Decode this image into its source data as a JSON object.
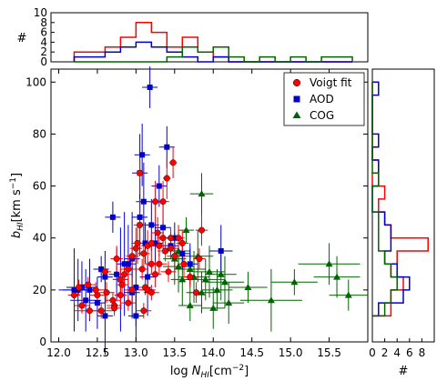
{
  "chart_data": [
    {
      "id": "main-scatter",
      "type": "scatter",
      "xlabel": "log N_HI[cm^-2]",
      "ylabel": "b_HI[km s^-1]",
      "xlim": [
        11.9,
        16.0
      ],
      "ylim": [
        0,
        105
      ],
      "xticks": [
        "12.0",
        "12.5",
        "13.0",
        "13.5",
        "14.0",
        "14.5",
        "15.0",
        "15.5"
      ],
      "yticks": [
        "0",
        "20",
        "40",
        "60",
        "80",
        "100"
      ],
      "legend": {
        "placement": "top-right",
        "entries": [
          "Voigt fit",
          "AOD",
          "COG"
        ]
      },
      "series": [
        {
          "name": "Voigt fit",
          "color": "#ff0000",
          "marker": "circle",
          "points": [
            [
              12.2,
              18,
              0.08,
              3
            ],
            [
              12.26,
              21,
              0.08,
              3
            ],
            [
              12.3,
              14,
              0.1,
              3
            ],
            [
              12.38,
              22,
              0.1,
              3
            ],
            [
              12.4,
              12,
              0.2,
              3
            ],
            [
              12.5,
              18,
              0.1,
              3
            ],
            [
              12.55,
              12,
              0.15,
              3
            ],
            [
              12.6,
              27,
              0.08,
              3
            ],
            [
              12.62,
              19,
              0.1,
              4
            ],
            [
              12.7,
              16,
              0.1,
              3
            ],
            [
              12.72,
              14,
              0.1,
              3
            ],
            [
              12.72,
              13,
              0.1,
              3
            ],
            [
              12.75,
              32,
              0.08,
              5
            ],
            [
              12.8,
              24,
              0.1,
              5
            ],
            [
              12.8,
              18,
              0.08,
              4
            ],
            [
              12.82,
              22,
              0.08,
              3
            ],
            [
              12.85,
              26,
              0.1,
              5
            ],
            [
              12.9,
              28,
              0.1,
              6
            ],
            [
              12.95,
              20,
              0.1,
              5
            ],
            [
              12.95,
              33,
              0.08,
              4
            ],
            [
              13.0,
              36,
              0.08,
              8
            ],
            [
              13.02,
              38,
              0.08,
              8
            ],
            [
              13.05,
              45,
              0.08,
              10
            ],
            [
              13.05,
              65,
              0.05,
              8
            ],
            [
              13.08,
              28,
              0.08,
              4
            ],
            [
              13.1,
              34,
              0.08,
              5
            ],
            [
              13.12,
              21,
              0.08,
              3
            ],
            [
              13.15,
              37,
              0.08,
              6
            ],
            [
              13.15,
              20,
              0.1,
              3
            ],
            [
              13.2,
              30,
              0.08,
              4
            ],
            [
              13.2,
              38,
              0.08,
              4
            ],
            [
              13.25,
              26,
              0.08,
              5
            ],
            [
              13.25,
              54,
              0.08,
              8
            ],
            [
              13.28,
              42,
              0.08,
              6
            ],
            [
              13.3,
              37,
              0.08,
              4
            ],
            [
              13.3,
              30,
              0.1,
              4
            ],
            [
              13.35,
              54,
              0.08,
              8
            ],
            [
              13.35,
              40,
              0.08,
              5
            ],
            [
              13.38,
              35,
              0.1,
              4
            ],
            [
              13.4,
              63,
              0.05,
              8
            ],
            [
              13.42,
              27,
              0.1,
              4
            ],
            [
              13.45,
              36,
              0.1,
              4
            ],
            [
              13.45,
              40,
              0.1,
              4
            ],
            [
              13.48,
              69,
              0.05,
              6
            ],
            [
              13.5,
              33,
              0.1,
              5
            ],
            [
              13.55,
              40,
              0.08,
              5
            ],
            [
              13.6,
              38,
              0.08,
              5
            ],
            [
              13.62,
              30,
              0.08,
              5
            ],
            [
              13.7,
              25,
              0.1,
              4
            ],
            [
              13.78,
              19,
              0.1,
              4
            ],
            [
              13.82,
              32,
              0.08,
              4
            ],
            [
              13.85,
              43,
              0.08,
              6
            ],
            [
              12.48,
              20,
              0.12,
              3
            ],
            [
              12.9,
              15,
              0.1,
              3
            ],
            [
              13.1,
              12,
              0.1,
              3
            ],
            [
              13.2,
              19,
              0.1,
              3
            ]
          ]
        },
        {
          "name": "AOD",
          "color": "#0000cc",
          "marker": "square",
          "points": [
            [
              12.2,
              20,
              0.2,
              16
            ],
            [
              12.25,
              20,
              0.2,
              12
            ],
            [
              12.3,
              21,
              0.2,
              10
            ],
            [
              12.35,
              16,
              0.2,
              12
            ],
            [
              12.4,
              20,
              0.15,
              12
            ],
            [
              12.5,
              15,
              0.1,
              10
            ],
            [
              12.6,
              25,
              0.1,
              10
            ],
            [
              12.6,
              10,
              0.1,
              15
            ],
            [
              12.7,
              48,
              0.1,
              6
            ],
            [
              12.75,
              26,
              0.1,
              10
            ],
            [
              12.8,
              24,
              0.1,
              20
            ],
            [
              12.85,
              30,
              0.1,
              20
            ],
            [
              12.9,
              30,
              0.1,
              15
            ],
            [
              12.95,
              32,
              0.1,
              18
            ],
            [
              12.95,
              19,
              0.1,
              10
            ],
            [
              13.0,
              21,
              0.1,
              15
            ],
            [
              13.0,
              10,
              0.1,
              10
            ],
            [
              13.05,
              65,
              0.1,
              15
            ],
            [
              13.05,
              48,
              0.1,
              15
            ],
            [
              13.08,
              72,
              0.1,
              12
            ],
            [
              13.1,
              54,
              0.1,
              15
            ],
            [
              13.12,
              38,
              0.1,
              8
            ],
            [
              13.15,
              20,
              0.1,
              10
            ],
            [
              13.18,
              98,
              0.1,
              8
            ],
            [
              13.2,
              45,
              0.1,
              10
            ],
            [
              13.25,
              38,
              0.1,
              8
            ],
            [
              13.3,
              60,
              0.1,
              8
            ],
            [
              13.35,
              44,
              0.1,
              10
            ],
            [
              13.4,
              75,
              0.1,
              8
            ],
            [
              13.45,
              37,
              0.1,
              5
            ],
            [
              13.5,
              40,
              0.1,
              6
            ],
            [
              13.6,
              34,
              0.1,
              6
            ],
            [
              13.7,
              30,
              0.1,
              8
            ],
            [
              14.1,
              35,
              0.15,
              10
            ],
            [
              13.15,
              25,
              0.1,
              6
            ],
            [
              12.55,
              28,
              0.1,
              5
            ]
          ]
        },
        {
          "name": "COG",
          "color": "#006400",
          "marker": "triangle",
          "points": [
            [
              13.5,
              32,
              0.15,
              10
            ],
            [
              13.55,
              35,
              0.15,
              8
            ],
            [
              13.55,
              29,
              0.2,
              10
            ],
            [
              13.6,
              24,
              0.15,
              10
            ],
            [
              13.65,
              43,
              0.1,
              5
            ],
            [
              13.7,
              28,
              0.2,
              8
            ],
            [
              13.7,
              14,
              0.15,
              6
            ],
            [
              13.75,
              25,
              0.2,
              10
            ],
            [
              13.8,
              33,
              0.2,
              10
            ],
            [
              13.85,
              57,
              0.15,
              8
            ],
            [
              13.85,
              19,
              0.2,
              8
            ],
            [
              13.9,
              24,
              0.25,
              8
            ],
            [
              13.95,
              27,
              0.2,
              10
            ],
            [
              14.0,
              13,
              0.15,
              8
            ],
            [
              14.05,
              20,
              0.2,
              8
            ],
            [
              14.1,
              26,
              0.2,
              10
            ],
            [
              14.15,
              23,
              0.25,
              10
            ],
            [
              14.2,
              15,
              0.2,
              8
            ],
            [
              14.45,
              21,
              0.25,
              6
            ],
            [
              14.75,
              16,
              0.4,
              12
            ],
            [
              15.05,
              23,
              0.3,
              5
            ],
            [
              15.5,
              30,
              0.4,
              8
            ],
            [
              15.6,
              25,
              0.3,
              8
            ],
            [
              15.75,
              18,
              0.25,
              6
            ]
          ]
        }
      ]
    },
    {
      "id": "top-histogram",
      "type": "bar",
      "ylabel": "#",
      "ylim": [
        0,
        10
      ],
      "yticks": [
        "0",
        "2",
        "4",
        "6",
        "8",
        "10"
      ],
      "bin_edges": [
        12.2,
        12.4,
        12.6,
        12.8,
        13.0,
        13.2,
        13.4,
        13.6,
        13.8,
        14.0,
        14.2,
        14.4,
        14.6,
        14.8,
        15.0,
        15.2,
        15.4,
        15.6,
        15.8
      ],
      "series": [
        {
          "name": "Voigt fit",
          "color": "#ff0000",
          "counts": [
            2,
            2,
            3,
            5,
            8,
            6,
            3,
            5,
            2,
            1,
            0,
            0,
            0,
            0,
            0,
            0,
            0,
            0
          ]
        },
        {
          "name": "AOD",
          "color": "#0000cc",
          "counts": [
            1,
            1,
            2,
            3,
            4,
            3,
            2,
            1,
            0,
            1,
            0,
            0,
            0,
            0,
            0,
            0,
            0,
            0
          ]
        },
        {
          "name": "COG",
          "color": "#006400",
          "counts": [
            0,
            0,
            0,
            0,
            0,
            0,
            1,
            3,
            2,
            3,
            1,
            0,
            1,
            0,
            1,
            0,
            1,
            1
          ]
        }
      ]
    },
    {
      "id": "right-histogram",
      "type": "bar",
      "xlabel": "#",
      "xlim": [
        0,
        10
      ],
      "xticks": [
        "0",
        "2",
        "4",
        "6",
        "8"
      ],
      "bin_edges": [
        10,
        15,
        20,
        25,
        30,
        35,
        40,
        45,
        50,
        55,
        60,
        65,
        70,
        75,
        80,
        85,
        90,
        95,
        100
      ],
      "series": [
        {
          "name": "Voigt fit",
          "color": "#ff0000",
          "counts": [
            3,
            3,
            5,
            3,
            4,
            9,
            3,
            2,
            1,
            2,
            0,
            1,
            0,
            0,
            0,
            0,
            0,
            0
          ]
        },
        {
          "name": "AOD",
          "color": "#0000cc",
          "counts": [
            1,
            5,
            6,
            4,
            2,
            3,
            3,
            2,
            0,
            0,
            1,
            1,
            0,
            1,
            0,
            0,
            0,
            1
          ]
        },
        {
          "name": "COG",
          "color": "#006400",
          "counts": [
            2,
            3,
            4,
            3,
            2,
            1,
            1,
            1,
            0,
            0,
            1,
            0,
            0,
            0,
            0,
            0,
            0,
            0
          ]
        }
      ]
    }
  ]
}
